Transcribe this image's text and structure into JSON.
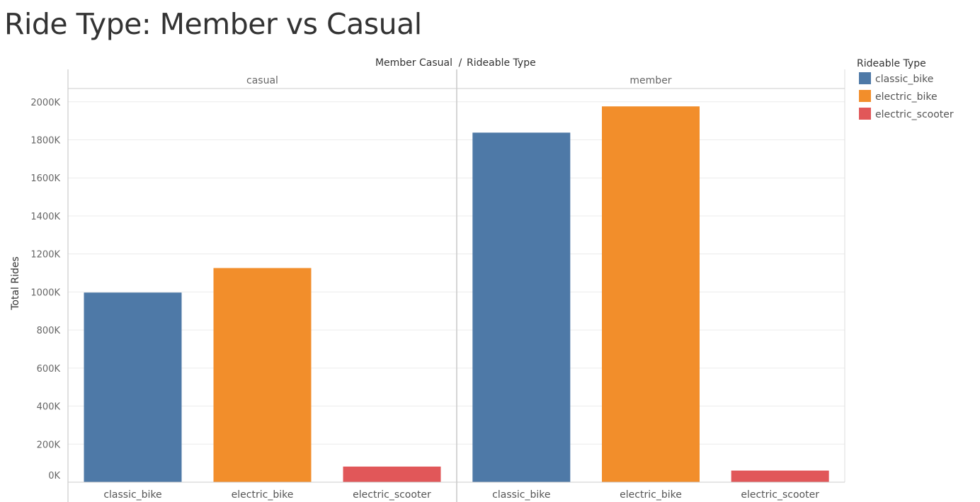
{
  "page": {
    "title": "Ride Type: Member vs Casual"
  },
  "colors": {
    "classic_bike": "#4e79a7",
    "electric_bike": "#f28e2b",
    "electric_scooter": "#e15759"
  },
  "chart_data": {
    "type": "bar",
    "header_left": "Member Casual",
    "header_separator": "/",
    "header_right": "Rideable Type",
    "ylabel": "Total Rides",
    "ylim": [
      0,
      2070000
    ],
    "yticks": [
      0,
      200000,
      400000,
      600000,
      800000,
      1000000,
      1200000,
      1400000,
      1600000,
      1800000,
      2000000
    ],
    "ytick_labels": [
      "0K",
      "200K",
      "400K",
      "600K",
      "800K",
      "1000K",
      "1200K",
      "1400K",
      "1600K",
      "1800K",
      "2000K"
    ],
    "grid": true,
    "legend_title": "Rideable Type",
    "legend_position": "right",
    "categories": [
      "classic_bike",
      "electric_bike",
      "electric_scooter"
    ],
    "panels": [
      {
        "name": "casual",
        "values": [
          997000,
          1126000,
          82000
        ]
      },
      {
        "name": "member",
        "values": [
          1838000,
          1976000,
          61000
        ]
      }
    ]
  }
}
